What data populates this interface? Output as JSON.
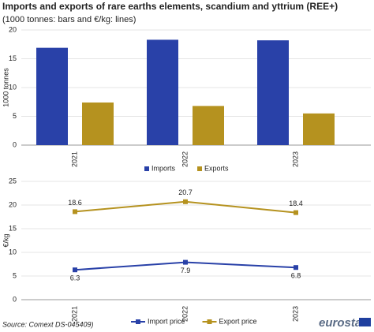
{
  "header": {
    "title": "Imports and exports of rare earths elements, scandium and yttrium (REE+)",
    "subtitle": "(1000 tonnes: bars and €/kg: lines)"
  },
  "footer": {
    "source": "Source: Comext DS-045409)",
    "logo": "eurostat"
  },
  "chart_data": [
    {
      "type": "bar",
      "y_label": "1000 tonnes",
      "categories": [
        "2021",
        "2022",
        "2023"
      ],
      "series": [
        {
          "name": "Imports",
          "color": "#2941a8",
          "values": [
            16.9,
            18.3,
            18.2
          ]
        },
        {
          "name": "Exports",
          "color": "#b5921f",
          "values": [
            7.4,
            6.8,
            5.5
          ]
        }
      ],
      "ylim": [
        0,
        20
      ],
      "yticks": [
        0,
        5,
        10,
        15,
        20
      ],
      "grid": true
    },
    {
      "type": "line",
      "y_label": "€/kg",
      "categories": [
        "2021",
        "2022",
        "2023"
      ],
      "series": [
        {
          "name": "Import price",
          "color": "#2941a8",
          "values": [
            6.3,
            7.9,
            6.8
          ]
        },
        {
          "name": "Export price",
          "color": "#b5921f",
          "values": [
            18.6,
            20.7,
            18.4
          ]
        }
      ],
      "ylim": [
        0,
        25
      ],
      "yticks": [
        0,
        5,
        10,
        15,
        20,
        25
      ],
      "grid": true
    }
  ]
}
